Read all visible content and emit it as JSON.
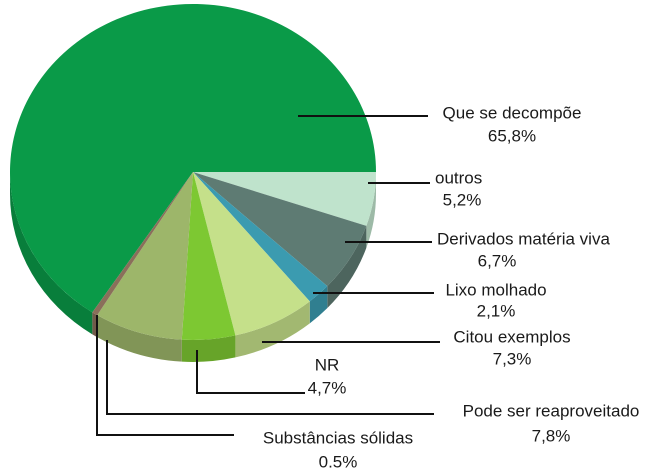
{
  "chart_data": {
    "type": "pie3d",
    "categories": [
      "Que se decompõe",
      "outros",
      "Derivados matéria viva",
      "Lixo molhado",
      "Citou exemplos",
      "NR",
      "Pode ser reaproveitado",
      "Substâncias sólidas"
    ],
    "values": [
      65.8,
      5.2,
      6.7,
      2.1,
      7.3,
      4.7,
      7.8,
      0.5
    ],
    "value_labels": [
      "65,8%",
      "5,2%",
      "6,7%",
      "2,1%",
      "7,3%",
      "4,7%",
      "7,8%",
      "0.5%"
    ],
    "colors": [
      "#0a9a48",
      "#bfe3cc",
      "#5e7b73",
      "#3b9bb0",
      "#c5e08a",
      "#7dc832",
      "#9db66a",
      "#8a6f5a"
    ]
  }
}
